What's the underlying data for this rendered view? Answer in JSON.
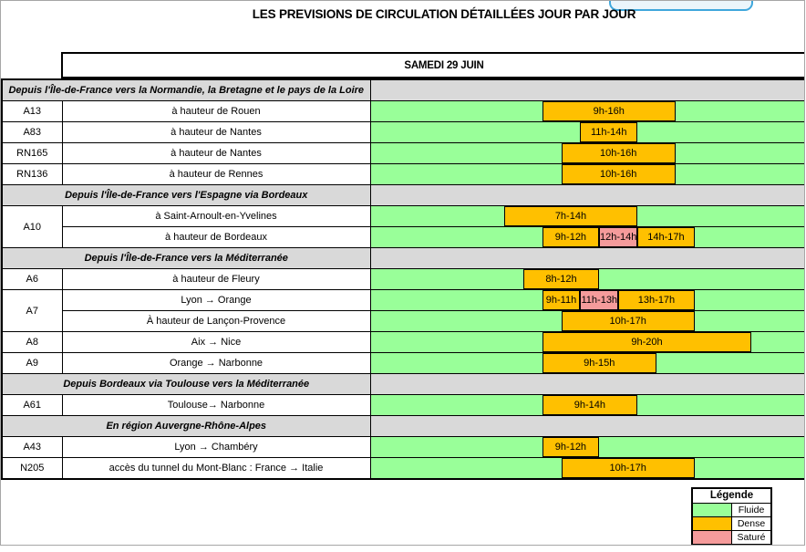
{
  "title": "LES PREVISIONS DE CIRCULATION DÉTAILLÉES JOUR PAR JOUR",
  "date_header": "SAMEDI 29 JUIN",
  "colors": {
    "fluide": "#99FF99",
    "dense": "#FFC000",
    "sature": "#F59B9B",
    "section_bg": "#D9D9D9"
  },
  "legend": {
    "title": "Légende",
    "items": [
      {
        "label": "Fluide",
        "level": "fluide"
      },
      {
        "label": "Dense",
        "level": "dense"
      },
      {
        "label": "Saturé",
        "level": "sature"
      }
    ]
  },
  "chart_data": {
    "type": "table",
    "subtype": "gantt-traffic-forecast",
    "x_axis": {
      "unit": "hour",
      "min": 0,
      "max": 24,
      "ticks_visible": false
    },
    "default_level": "fluide",
    "sections": [
      {
        "label": "Depuis l'Île-de-France vers la Normandie, la Bretagne et le pays de la Loire",
        "rows": [
          {
            "road": "A13",
            "location": "à hauteur de Rouen",
            "bars": [
              {
                "label": "9h-16h",
                "start": 9,
                "end": 16,
                "level": "dense"
              }
            ]
          },
          {
            "road": "A83",
            "location": "à hauteur de Nantes",
            "bars": [
              {
                "label": "11h-14h",
                "start": 11,
                "end": 14,
                "level": "dense"
              }
            ]
          },
          {
            "road": "RN165",
            "location": "à hauteur de Nantes",
            "bars": [
              {
                "label": "10h-16h",
                "start": 10,
                "end": 16,
                "level": "dense"
              }
            ]
          },
          {
            "road": "RN136",
            "location": "à hauteur de Rennes",
            "bars": [
              {
                "label": "10h-16h",
                "start": 10,
                "end": 16,
                "level": "dense"
              }
            ]
          }
        ]
      },
      {
        "label": "Depuis l'Île-de-France vers l'Espagne via Bordeaux",
        "rows": [
          {
            "road": "A10",
            "rowspan": 2,
            "location": "à Saint-Arnoult-en-Yvelines",
            "bars": [
              {
                "label": "7h-14h",
                "start": 7,
                "end": 14,
                "level": "dense"
              }
            ]
          },
          {
            "road": null,
            "location": "à hauteur de Bordeaux",
            "bars": [
              {
                "label": "9h-12h",
                "start": 9,
                "end": 12,
                "level": "dense"
              },
              {
                "label": "12h-14h",
                "start": 12,
                "end": 14,
                "level": "sature"
              },
              {
                "label": "14h-17h",
                "start": 14,
                "end": 17,
                "level": "dense"
              }
            ]
          }
        ]
      },
      {
        "label": "Depuis l'Île-de-France vers la Méditerranée",
        "rows": [
          {
            "road": "A6",
            "location": "à hauteur de Fleury",
            "bars": [
              {
                "label": "8h-12h",
                "start": 8,
                "end": 12,
                "level": "dense"
              }
            ]
          },
          {
            "road": "A7",
            "rowspan": 2,
            "location": "Lyon  →  Orange",
            "bars": [
              {
                "label": "9h-11h",
                "start": 9,
                "end": 11,
                "level": "dense"
              },
              {
                "label": "11h-13h",
                "start": 11,
                "end": 13,
                "level": "sature"
              },
              {
                "label": "13h-17h",
                "start": 13,
                "end": 17,
                "level": "dense"
              }
            ]
          },
          {
            "road": null,
            "location": "À hauteur de Lançon-Provence",
            "bars": [
              {
                "label": "10h-17h",
                "start": 10,
                "end": 17,
                "level": "dense"
              }
            ]
          },
          {
            "road": "A8",
            "location": "Aix  →  Nice",
            "bars": [
              {
                "label": "9h-20h",
                "start": 9,
                "end": 20,
                "level": "dense"
              }
            ]
          },
          {
            "road": "A9",
            "location": "Orange  →  Narbonne",
            "bars": [
              {
                "label": "9h-15h",
                "start": 9,
                "end": 15,
                "level": "dense"
              }
            ]
          }
        ]
      },
      {
        "label": "Depuis Bordeaux via Toulouse vers la Méditerranée",
        "rows": [
          {
            "road": "A61",
            "location": "Toulouse→  Narbonne",
            "bars": [
              {
                "label": "9h-14h",
                "start": 9,
                "end": 14,
                "level": "dense"
              }
            ]
          }
        ]
      },
      {
        "label": "En région Auvergne-Rhône-Alpes",
        "rows": [
          {
            "road": "A43",
            "location": "Lyon  →  Chambéry",
            "bars": [
              {
                "label": "9h-12h",
                "start": 9,
                "end": 12,
                "level": "dense"
              }
            ]
          },
          {
            "road": "N205",
            "location": "accès du tunnel du Mont-Blanc : France  →  Italie",
            "bars": [
              {
                "label": "10h-17h",
                "start": 10,
                "end": 17,
                "level": "dense"
              }
            ]
          }
        ]
      }
    ]
  }
}
